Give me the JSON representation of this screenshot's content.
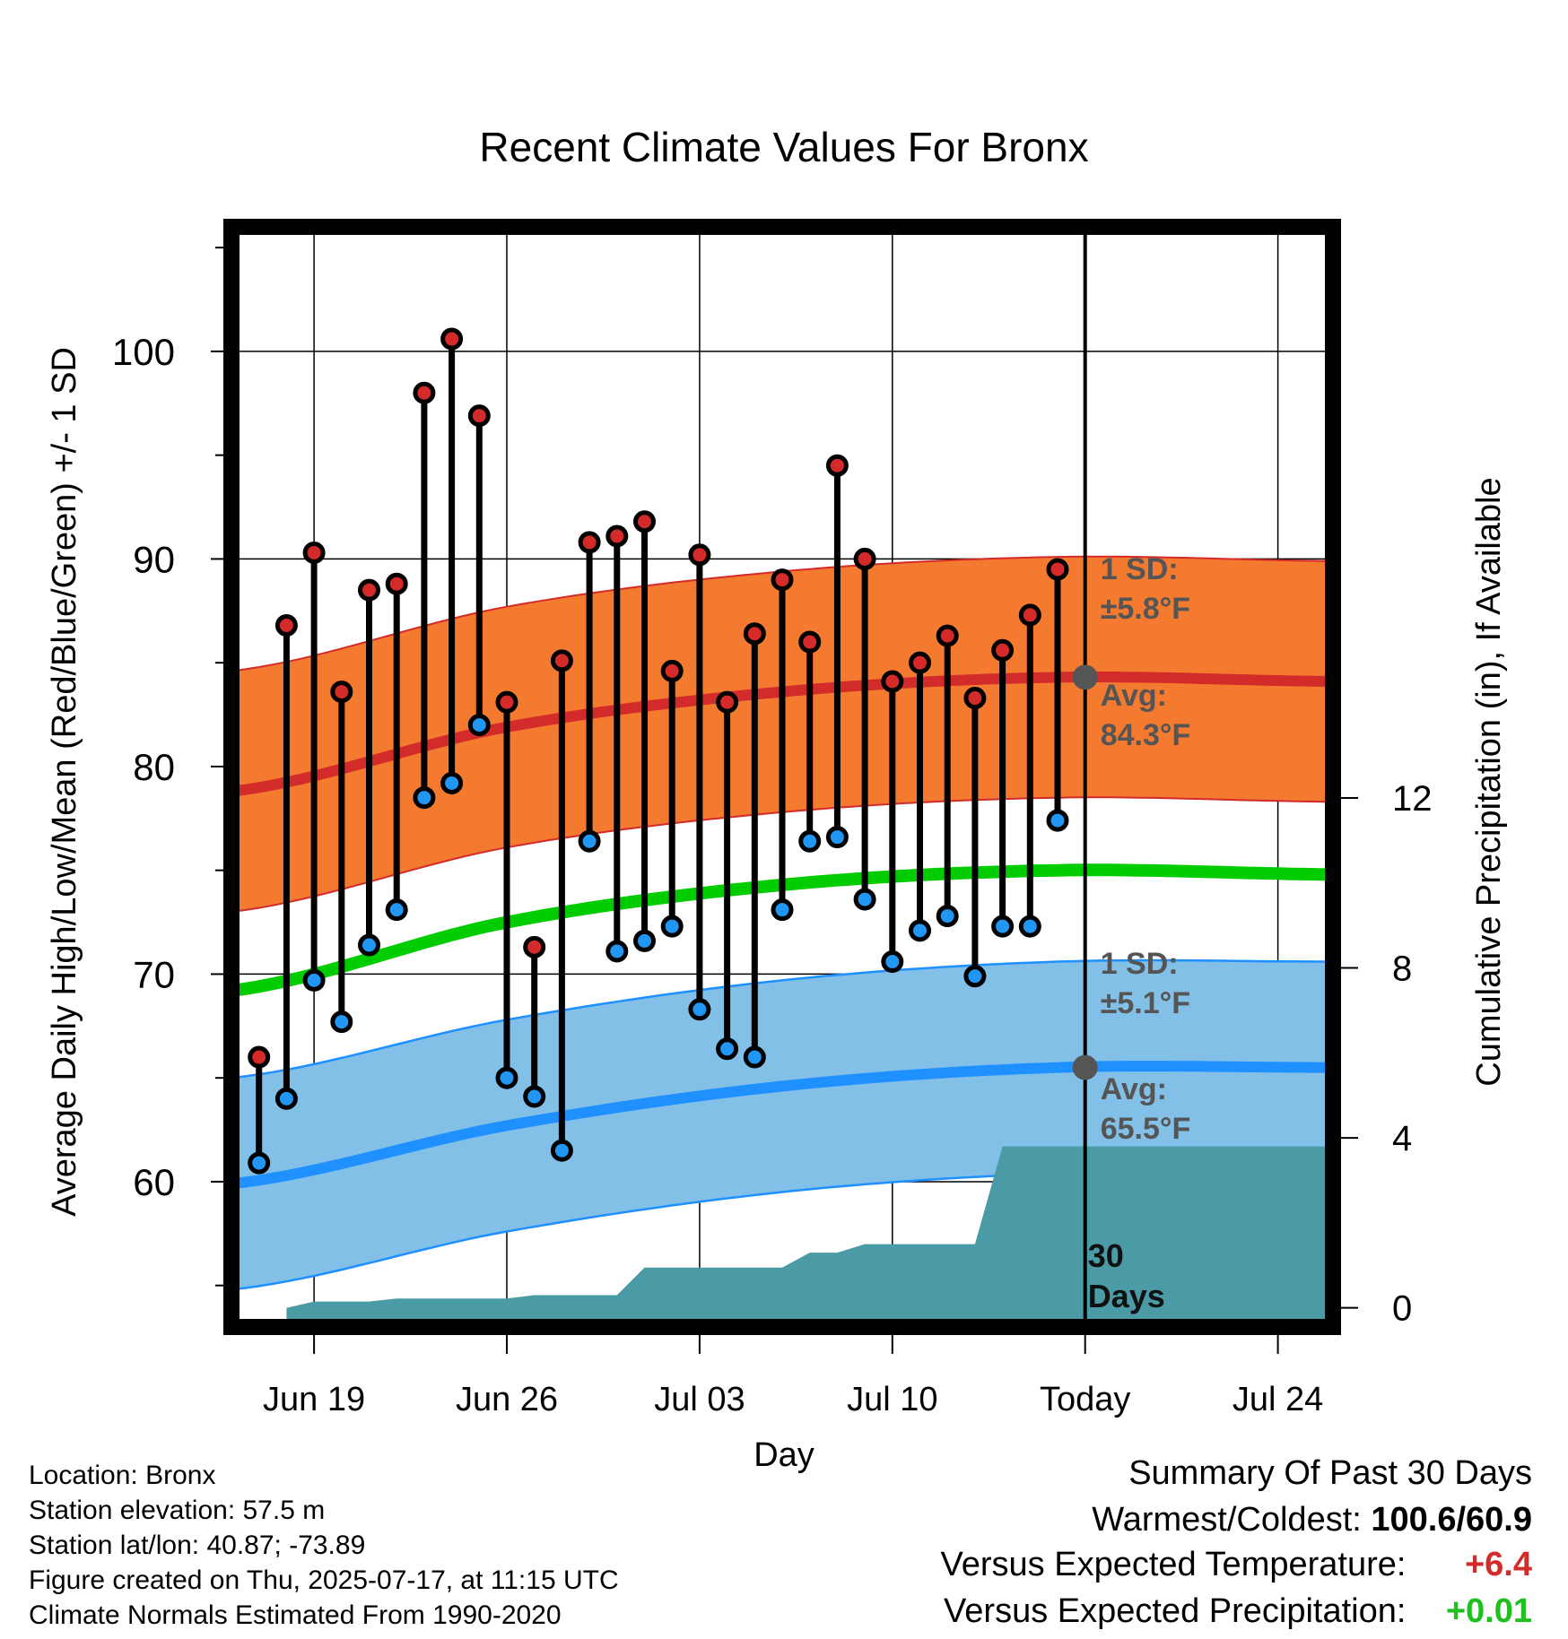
{
  "title": "Recent Climate Values For Bronx",
  "chart_data": {
    "type": "line",
    "title": "Recent Climate Values For Bronx",
    "xlabel": "Day",
    "ylabel": "Average Daily High/Low/Mean (Red/Blue/Green) +/- 1 SD",
    "y2label": "Cumulative Precipitation (in), If Available",
    "x_ticks": [
      "Jun 19",
      "Jun 26",
      "Jul 03",
      "Jul 10",
      "Today",
      "Jul 24"
    ],
    "x_range": [
      "2025-06-16",
      "2025-07-26"
    ],
    "ylim": [
      53,
      106
    ],
    "y_ticks": [
      60,
      70,
      80,
      90,
      100
    ],
    "y2_ticks": [
      0,
      4,
      8,
      12
    ],
    "grid": true,
    "days": [
      "2025-06-17",
      "2025-06-18",
      "2025-06-19",
      "2025-06-20",
      "2025-06-21",
      "2025-06-22",
      "2025-06-23",
      "2025-06-24",
      "2025-06-25",
      "2025-06-26",
      "2025-06-27",
      "2025-06-28",
      "2025-06-29",
      "2025-06-30",
      "2025-07-01",
      "2025-07-02",
      "2025-07-03",
      "2025-07-04",
      "2025-07-05",
      "2025-07-06",
      "2025-07-07",
      "2025-07-08",
      "2025-07-09",
      "2025-07-10",
      "2025-07-11",
      "2025-07-12",
      "2025-07-13",
      "2025-07-14",
      "2025-07-15",
      "2025-07-16"
    ],
    "daily_high": [
      66.0,
      86.8,
      90.3,
      83.6,
      88.5,
      88.8,
      98.0,
      100.6,
      96.9,
      83.1,
      71.3,
      85.1,
      90.8,
      91.1,
      91.8,
      84.6,
      90.2,
      83.1,
      86.4,
      89.0,
      86.0,
      94.5,
      90.0,
      84.1,
      85.0,
      86.3,
      83.3,
      85.6,
      87.3,
      89.5
    ],
    "daily_low": [
      60.9,
      64.0,
      69.7,
      67.7,
      71.4,
      73.1,
      78.5,
      79.2,
      82.0,
      65.0,
      64.1,
      61.5,
      76.4,
      71.1,
      71.6,
      72.3,
      68.3,
      66.4,
      66.0,
      73.1,
      76.4,
      76.6,
      73.6,
      70.6,
      72.1,
      72.8,
      69.9,
      72.3,
      72.3,
      77.4
    ],
    "normals": {
      "days": [
        "2025-06-16",
        "2025-06-26",
        "2025-07-06",
        "2025-07-16",
        "2025-07-26"
      ],
      "avg_high": [
        78.8,
        81.9,
        83.6,
        84.3,
        84.1
      ],
      "avg_high_sd": 5.8,
      "avg_low": [
        59.9,
        62.7,
        64.6,
        65.5,
        65.5
      ],
      "avg_low_sd": 5.1,
      "avg_mean": [
        69.2,
        72.5,
        74.3,
        75.0,
        74.8
      ]
    },
    "cumulative_precip": {
      "days": [
        "2025-06-18",
        "2025-06-19",
        "2025-06-21",
        "2025-06-22",
        "2025-06-26",
        "2025-06-27",
        "2025-06-28",
        "2025-06-30",
        "2025-07-01",
        "2025-07-06",
        "2025-07-07",
        "2025-07-08",
        "2025-07-09",
        "2025-07-10",
        "2025-07-13",
        "2025-07-14",
        "2025-07-16"
      ],
      "values": [
        0.0,
        0.15,
        0.15,
        0.22,
        0.22,
        0.3,
        0.3,
        0.3,
        0.95,
        0.95,
        1.3,
        1.3,
        1.5,
        1.5,
        1.5,
        3.8,
        3.8
      ]
    },
    "annotations": {
      "today_date": "2025-07-16",
      "today_label": "Today",
      "days_count": "30",
      "days_word": "Days",
      "high_sd": "1 SD:",
      "high_sd_value": "±5.8°F",
      "high_avg": "Avg:",
      "high_avg_value": "84.3°F",
      "low_sd": "1 SD:",
      "low_sd_value": "±5.1°F",
      "low_avg": "Avg:",
      "low_avg_value": "65.5°F"
    },
    "colors": {
      "high_band": "#f47a30",
      "high_line": "#d32a2a",
      "low_band": "#82c0e8",
      "low_line": "#1e90ff",
      "mean_line": "#00cc00",
      "precip": "#4a9ba6",
      "high_dot": "#d42a2a",
      "low_dot": "#2196f3"
    }
  },
  "metadata": {
    "location": "Location: Bronx",
    "elevation": "Station elevation: 57.5 m",
    "latlon": "Station lat/lon: 40.87; -73.89",
    "created": "Figure created on Thu, 2025-07-17, at 11:15 UTC",
    "normals": "Climate Normals Estimated From 1990-2020"
  },
  "summary": {
    "title": "Summary Of Past 30 Days",
    "warm_cold_label": "Warmest/Coldest:",
    "warm_cold_value": "100.6/60.9",
    "temp_label": "Versus Expected Temperature:",
    "temp_value": "+6.4",
    "temp_color": "#d42a2a",
    "precip_label": "Versus Expected Precipitation:",
    "precip_value": "+0.01",
    "precip_color": "#1fc01f"
  }
}
